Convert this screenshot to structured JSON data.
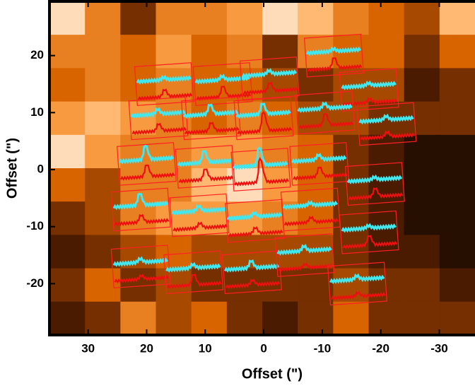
{
  "chart_data": {
    "type": "map",
    "xlabel": "Offset (\")",
    "ylabel": "Offset (\")",
    "xlim": [
      36.6,
      -36.1
    ],
    "ylim": [
      -29,
      29.5
    ],
    "xticks": [
      30,
      20,
      10,
      0,
      -10,
      -20,
      -30
    ],
    "yticks": [
      20,
      10,
      0,
      -10,
      -20
    ],
    "colormap": [
      "#000000",
      "#5e2200",
      "#d86400",
      "#ffa850",
      "#ffffff"
    ],
    "intensity": [
      [
        0.9,
        0.6,
        0.3,
        0.6,
        0.6,
        0.7,
        0.9,
        0.8,
        0.6,
        0.5,
        0.4,
        0.8
      ],
      [
        0.6,
        0.6,
        0.5,
        0.7,
        0.5,
        0.6,
        0.3,
        0.6,
        0.5,
        0.5,
        0.3,
        0.5
      ],
      [
        0.5,
        0.6,
        0.5,
        0.6,
        0.5,
        0.5,
        0.4,
        0.3,
        0.4,
        0.4,
        0.2,
        0.3
      ],
      [
        0.7,
        0.8,
        0.7,
        0.6,
        0.5,
        0.6,
        0.5,
        0.4,
        0.4,
        0.3,
        0.3,
        0.3
      ],
      [
        0.9,
        0.7,
        0.6,
        0.6,
        0.7,
        0.7,
        0.6,
        0.5,
        0.3,
        0.2,
        0.1,
        0.1
      ],
      [
        0.5,
        0.4,
        0.6,
        0.6,
        0.8,
        0.9,
        0.7,
        0.5,
        0.3,
        0.2,
        0.1,
        0.1
      ],
      [
        0.3,
        0.4,
        0.6,
        0.7,
        0.7,
        0.7,
        0.6,
        0.5,
        0.3,
        0.2,
        0.1,
        0.1
      ],
      [
        0.2,
        0.3,
        0.4,
        0.5,
        0.4,
        0.4,
        0.4,
        0.4,
        0.3,
        0.2,
        0.2,
        0.1
      ],
      [
        0.3,
        0.5,
        0.3,
        0.4,
        0.3,
        0.3,
        0.3,
        0.3,
        0.4,
        0.3,
        0.3,
        0.2
      ],
      [
        0.2,
        0.3,
        0.6,
        0.4,
        0.5,
        0.3,
        0.2,
        0.3,
        0.5,
        0.3,
        0.3,
        0.3
      ]
    ],
    "box_color": "#ff2020",
    "cyan_color": "#40e8f0",
    "red_color": "#ee1010",
    "spectra": [
      {
        "x": 17,
        "y": 15,
        "cyan_peak": 0.1,
        "red_peak": 0.3
      },
      {
        "x": 7,
        "y": 15,
        "cyan_peak": 0.15,
        "red_peak": 0.45
      },
      {
        "x": -1,
        "y": 16,
        "cyan_peak": 0.15,
        "red_peak": 0.35
      },
      {
        "x": -12,
        "y": 20,
        "cyan_peak": 0.1,
        "red_peak": 0.45
      },
      {
        "x": -18,
        "y": 14,
        "cyan_peak": 0.1,
        "red_peak": 0.15
      },
      {
        "x": 18,
        "y": 9,
        "cyan_peak": 0.2,
        "red_peak": 0.3
      },
      {
        "x": 9,
        "y": 9,
        "cyan_peak": 0.4,
        "red_peak": 0.35
      },
      {
        "x": 0,
        "y": 9,
        "cyan_peak": 0.45,
        "red_peak": 0.8
      },
      {
        "x": -10.5,
        "y": 10,
        "cyan_peak": 0.2,
        "red_peak": 0.5
      },
      {
        "x": -21,
        "y": 8,
        "cyan_peak": 0.15,
        "red_peak": 0.2
      },
      {
        "x": 20,
        "y": 1,
        "cyan_peak": 0.6,
        "red_peak": 0.5
      },
      {
        "x": 10,
        "y": 0.5,
        "cyan_peak": 0.5,
        "red_peak": 0.45
      },
      {
        "x": 0.5,
        "y": 0,
        "cyan_peak": 0.75,
        "red_peak": 1.0
      },
      {
        "x": -9.5,
        "y": 1,
        "cyan_peak": 0.2,
        "red_peak": 0.4
      },
      {
        "x": -19,
        "y": -2.5,
        "cyan_peak": 0.1,
        "red_peak": 0.35
      },
      {
        "x": 21,
        "y": -7,
        "cyan_peak": 0.5,
        "red_peak": 0.3
      },
      {
        "x": 11,
        "y": -8,
        "cyan_peak": 0.2,
        "red_peak": 0.2
      },
      {
        "x": 1.5,
        "y": -9,
        "cyan_peak": 0.15,
        "red_peak": 0.25
      },
      {
        "x": -8,
        "y": -7,
        "cyan_peak": 0.1,
        "red_peak": 0.2
      },
      {
        "x": -18,
        "y": -11,
        "cyan_peak": 0.1,
        "red_peak": 0.4
      },
      {
        "x": 21,
        "y": -17,
        "cyan_peak": 0.15,
        "red_peak": 0.15
      },
      {
        "x": 12,
        "y": -18,
        "cyan_peak": 0.15,
        "red_peak": 0.45
      },
      {
        "x": 2,
        "y": -18,
        "cyan_peak": 0.3,
        "red_peak": 0.2
      },
      {
        "x": -7,
        "y": -15,
        "cyan_peak": 0.2,
        "red_peak": 0.15
      },
      {
        "x": -16,
        "y": -20,
        "cyan_peak": 0.15,
        "red_peak": 0.15
      }
    ]
  }
}
